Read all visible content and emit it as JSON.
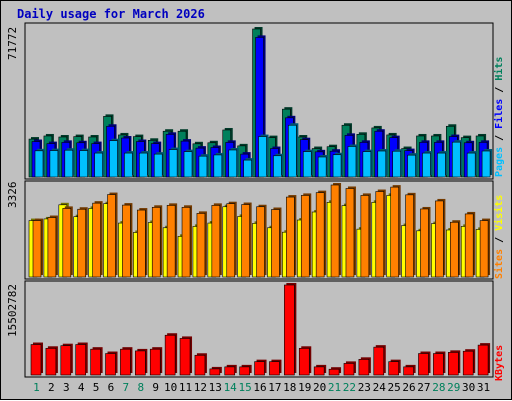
{
  "chart_data": {
    "type": "bar",
    "title": "Daily usage for March 2026",
    "categories": [
      "1",
      "2",
      "3",
      "4",
      "5",
      "6",
      "7",
      "8",
      "9",
      "10",
      "11",
      "12",
      "13",
      "14",
      "15",
      "16",
      "17",
      "18",
      "19",
      "20",
      "21",
      "22",
      "23",
      "24",
      "25",
      "26",
      "27",
      "28",
      "29",
      "30",
      "31"
    ],
    "weekend_days": [
      "1",
      "7",
      "8",
      "14",
      "15",
      "21",
      "22",
      "28",
      "29"
    ],
    "colors": {
      "hits": "#00805c",
      "files": "#0000ff",
      "pages": "#00c0ff",
      "visits": "#ffff00",
      "sites": "#ff8000",
      "kbytes": "#ff0000",
      "title": "#0000c0",
      "weekend_label": "#00805c",
      "weekday_label": "#000000",
      "panel_bg": "#c0c0c0"
    },
    "panels": [
      {
        "name": "hits-files-pages",
        "ymax_label": "71772",
        "ylim": [
          0,
          71772
        ],
        "legend": [
          {
            "label": "Hits",
            "color": "#00805c"
          },
          {
            "label": "Files",
            "color": "#0000ff"
          },
          {
            "label": "Pages",
            "color": "#00c0ff"
          }
        ],
        "series": [
          {
            "name": "Hits",
            "color": "#00805c",
            "values": [
              18400,
              19900,
              19400,
              19600,
              19400,
              29400,
              20400,
              19600,
              17800,
              22200,
              22200,
              16100,
              16600,
              22800,
              15100,
              71772,
              19100,
              32900,
              19400,
              13800,
              14700,
              25100,
              20700,
              23800,
              20400,
              13800,
              19900,
              19900,
              24600,
              19100,
              19900
            ]
          },
          {
            "name": "Files",
            "color": "#0000ff",
            "values": [
              17200,
              16200,
              16800,
              16600,
              16200,
              24600,
              18900,
              17200,
              16200,
              20700,
              17400,
              14000,
              14300,
              16800,
              11100,
              67700,
              13800,
              28700,
              18100,
              12200,
              12500,
              20200,
              16800,
              22200,
              19100,
              12800,
              16800,
              16800,
              19600,
              16600,
              16800
            ]
          },
          {
            "name": "Pages",
            "color": "#00c0ff",
            "values": [
              12700,
              12800,
              13000,
              12800,
              11600,
              17600,
              11600,
              11600,
              11100,
              13300,
              12300,
              10100,
              10700,
              13100,
              8200,
              19600,
              10300,
              25100,
              12300,
              9700,
              10800,
              14800,
              12300,
              12600,
              12500,
              10600,
              11600,
              11600,
              16900,
              11600,
              12600
            ]
          }
        ]
      },
      {
        "name": "visits-sites",
        "ymax_label": "3326",
        "ylim": [
          0,
          3326
        ],
        "legend": [
          {
            "label": "Visits",
            "color": "#ffff00"
          },
          {
            "label": "Sites",
            "color": "#ff8000"
          }
        ],
        "series": [
          {
            "name": "Visits",
            "color": "#ffff00",
            "values": [
              2040,
              2100,
              2610,
              2180,
              2480,
              2650,
              1950,
              1610,
              1970,
              1780,
              1470,
              1830,
              1950,
              2540,
              2190,
              1940,
              1780,
              1620,
              2060,
              2350,
              2700,
              2580,
              1730,
              2700,
              2950,
              1860,
              1670,
              1930,
              1700,
              1830,
              1720
            ]
          },
          {
            "name": "Sites",
            "color": "#ff8000",
            "values": [
              2040,
              2150,
              2480,
              2450,
              2670,
              2980,
              2600,
              2420,
              2520,
              2590,
              2520,
              2300,
              2590,
              2650,
              2620,
              2540,
              2440,
              2890,
              2950,
              3050,
              3326,
              3200,
              2950,
              3090,
              3250,
              2970,
              2460,
              2750,
              1980,
              2280,
              2040
            ]
          }
        ]
      },
      {
        "name": "kbytes",
        "ymax_label": "15502782",
        "ylim": [
          0,
          15502782
        ],
        "legend": [
          {
            "label": "KBytes",
            "color": "#ff0000"
          }
        ],
        "series": [
          {
            "name": "KBytes",
            "color": "#ff0000",
            "values": [
              5250000,
              4600000,
              5050000,
              5250000,
              4450000,
              3700000,
              4450000,
              4150000,
              4450000,
              6850000,
              6300000,
              3400000,
              1050000,
              1400000,
              1400000,
              2300000,
              2300000,
              15502782,
              4600000,
              1400000,
              1000000,
              2000000,
              2700000,
              4800000,
              2300000,
              1400000,
              3700000,
              3700000,
              3900000,
              4100000,
              5150000
            ]
          }
        ]
      }
    ]
  }
}
